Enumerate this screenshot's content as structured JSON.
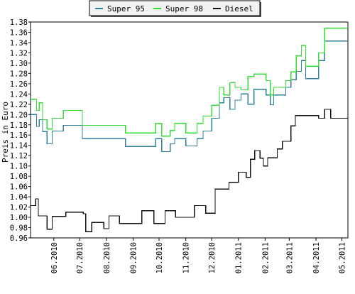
{
  "chart_data": {
    "type": "line",
    "ylabel": "Preis in Euro",
    "ylim": [
      0.96,
      1.38
    ],
    "yticks": [
      "0.96",
      "0.98",
      "1.00",
      "1.02",
      "1.04",
      "1.06",
      "1.08",
      "1.10",
      "1.12",
      "1.14",
      "1.16",
      "1.18",
      "1.20",
      "1.22",
      "1.24",
      "1.26",
      "1.28",
      "1.30",
      "1.32",
      "1.34",
      "1.36",
      "1.38"
    ],
    "xticks": [
      "06.2010",
      "07.2010",
      "08.2010",
      "09.2010",
      "10.2010",
      "11.2010",
      "12.2010",
      "01.2011",
      "02.2011",
      "03.2011",
      "04.2011",
      "05.2011"
    ],
    "xlim": [
      "2010-05-05",
      "2011-05-08"
    ],
    "line_style": "step",
    "grid": true,
    "legend_position": "top",
    "series": [
      {
        "name": "Super 95",
        "color": "#2f7f9f",
        "points": [
          [
            "2010-05-05",
            1.2
          ],
          [
            "2010-05-12",
            1.177
          ],
          [
            "2010-05-15",
            1.19
          ],
          [
            "2010-05-19",
            1.167
          ],
          [
            "2010-05-24",
            1.143
          ],
          [
            "2010-05-30",
            1.168
          ],
          [
            "2010-06-12",
            1.179
          ],
          [
            "2010-07-04",
            1.153
          ],
          [
            "2010-08-23",
            1.138
          ],
          [
            "2010-09-27",
            1.153
          ],
          [
            "2010-10-04",
            1.128
          ],
          [
            "2010-10-14",
            1.143
          ],
          [
            "2010-10-19",
            1.153
          ],
          [
            "2010-11-01",
            1.139
          ],
          [
            "2010-11-14",
            1.153
          ],
          [
            "2010-11-21",
            1.168
          ],
          [
            "2010-12-01",
            1.193
          ],
          [
            "2010-12-10",
            1.223
          ],
          [
            "2010-12-15",
            1.233
          ],
          [
            "2010-12-22",
            1.21
          ],
          [
            "2010-12-28",
            1.228
          ],
          [
            "2011-01-04",
            1.24
          ],
          [
            "2011-01-12",
            1.22
          ],
          [
            "2011-01-19",
            1.249
          ],
          [
            "2011-02-02",
            1.238
          ],
          [
            "2011-02-07",
            1.219
          ],
          [
            "2011-02-11",
            1.238
          ],
          [
            "2011-02-25",
            1.253
          ],
          [
            "2011-03-03",
            1.268
          ],
          [
            "2011-03-09",
            1.284
          ],
          [
            "2011-03-15",
            1.305
          ],
          [
            "2011-03-20",
            1.27
          ],
          [
            "2011-04-04",
            1.305
          ],
          [
            "2011-04-11",
            1.343
          ],
          [
            "2011-05-08",
            1.343
          ]
        ]
      },
      {
        "name": "Super 98",
        "color": "#33dd33",
        "points": [
          [
            "2010-05-05",
            1.23
          ],
          [
            "2010-05-12",
            1.208
          ],
          [
            "2010-05-15",
            1.223
          ],
          [
            "2010-05-19",
            1.19
          ],
          [
            "2010-05-24",
            1.172
          ],
          [
            "2010-05-30",
            1.193
          ],
          [
            "2010-06-12",
            1.208
          ],
          [
            "2010-07-04",
            1.179
          ],
          [
            "2010-08-23",
            1.164
          ],
          [
            "2010-09-27",
            1.183
          ],
          [
            "2010-10-04",
            1.158
          ],
          [
            "2010-10-14",
            1.169
          ],
          [
            "2010-10-19",
            1.183
          ],
          [
            "2010-11-01",
            1.164
          ],
          [
            "2010-11-14",
            1.183
          ],
          [
            "2010-11-21",
            1.197
          ],
          [
            "2010-12-01",
            1.218
          ],
          [
            "2010-12-10",
            1.253
          ],
          [
            "2010-12-15",
            1.238
          ],
          [
            "2010-12-22",
            1.262
          ],
          [
            "2010-12-28",
            1.253
          ],
          [
            "2011-01-04",
            1.248
          ],
          [
            "2011-01-12",
            1.274
          ],
          [
            "2011-01-19",
            1.279
          ],
          [
            "2011-02-02",
            1.266
          ],
          [
            "2011-02-07",
            1.238
          ],
          [
            "2011-02-11",
            1.253
          ],
          [
            "2011-02-25",
            1.266
          ],
          [
            "2011-03-03",
            1.283
          ],
          [
            "2011-03-09",
            1.314
          ],
          [
            "2011-03-15",
            1.334
          ],
          [
            "2011-03-20",
            1.294
          ],
          [
            "2011-04-04",
            1.32
          ],
          [
            "2011-04-11",
            1.368
          ],
          [
            "2011-05-08",
            1.368
          ]
        ]
      },
      {
        "name": "Diesel",
        "color": "#111111",
        "points": [
          [
            "2010-05-05",
            1.023
          ],
          [
            "2010-05-11",
            1.036
          ],
          [
            "2010-05-14",
            1.003
          ],
          [
            "2010-05-24",
            0.977
          ],
          [
            "2010-05-30",
            1.002
          ],
          [
            "2010-06-15",
            1.01
          ],
          [
            "2010-07-05",
            1.007
          ],
          [
            "2010-07-08",
            0.972
          ],
          [
            "2010-07-15",
            0.99
          ],
          [
            "2010-07-29",
            0.978
          ],
          [
            "2010-08-04",
            1.003
          ],
          [
            "2010-08-16",
            0.988
          ],
          [
            "2010-09-11",
            1.013
          ],
          [
            "2010-09-25",
            0.988
          ],
          [
            "2010-10-08",
            1.013
          ],
          [
            "2010-10-20",
            1.0
          ],
          [
            "2010-11-11",
            1.023
          ],
          [
            "2010-11-24",
            1.008
          ],
          [
            "2010-12-05",
            1.055
          ],
          [
            "2010-12-21",
            1.068
          ],
          [
            "2011-01-01",
            1.088
          ],
          [
            "2011-01-10",
            1.078
          ],
          [
            "2011-01-15",
            1.113
          ],
          [
            "2011-01-20",
            1.13
          ],
          [
            "2011-01-26",
            1.115
          ],
          [
            "2011-01-30",
            1.1
          ],
          [
            "2011-02-04",
            1.116
          ],
          [
            "2011-02-15",
            1.133
          ],
          [
            "2011-02-21",
            1.148
          ],
          [
            "2011-03-03",
            1.178
          ],
          [
            "2011-03-08",
            1.198
          ],
          [
            "2011-04-04",
            1.193
          ],
          [
            "2011-04-11",
            1.21
          ],
          [
            "2011-04-18",
            1.193
          ],
          [
            "2011-05-08",
            1.193
          ]
        ]
      }
    ]
  }
}
